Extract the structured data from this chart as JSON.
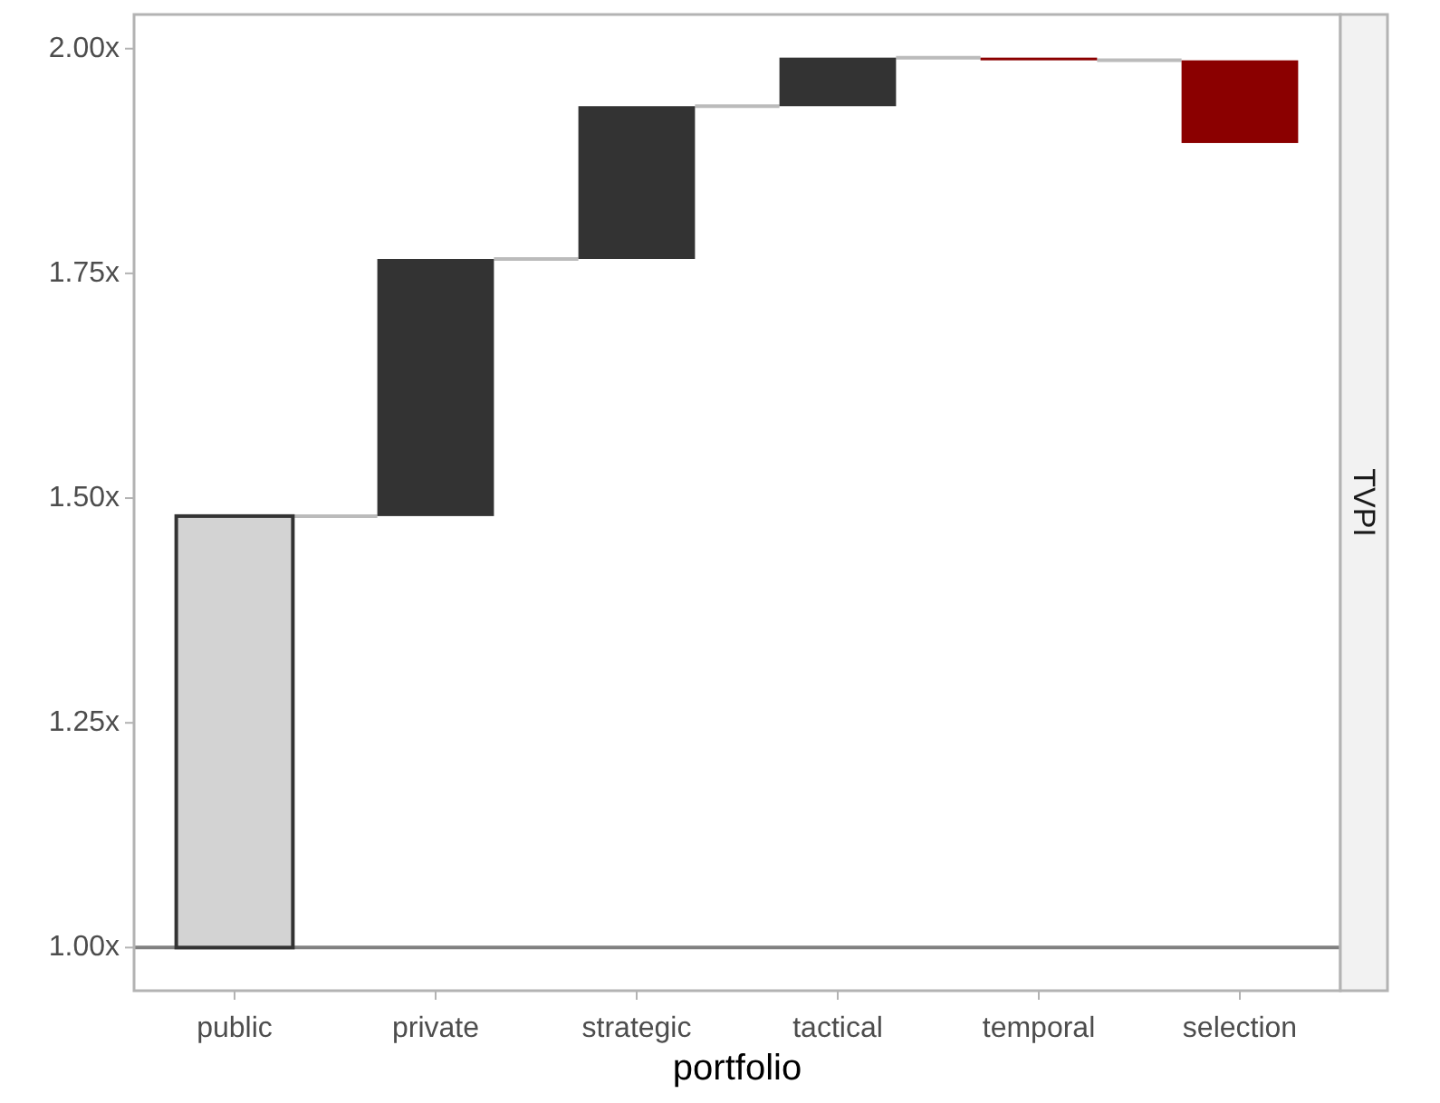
{
  "chart_data": {
    "type": "bar",
    "xlabel": "portfolio",
    "annotations": [
      "TVPI"
    ],
    "categories": [
      "public",
      "private",
      "strategic",
      "tactical",
      "temporal",
      "selection"
    ],
    "base": [
      1,
      1.48,
      1.766,
      1.936,
      1.99,
      1.987
    ],
    "values": [
      0.48,
      0.286,
      0.17,
      0.054,
      -0.003,
      -0.092
    ],
    "colors": [
      "#d3d3d3",
      "#333333",
      "#333333",
      "#333333",
      "#8b0000",
      "#8b0000"
    ],
    "ylim": [
      0.952,
      2.038
    ],
    "yticks": [
      {
        "value": 1,
        "label": "1.00x"
      },
      {
        "value": 1.25,
        "label": "1.25x"
      },
      {
        "value": 1.5,
        "label": "1.50x"
      },
      {
        "value": 1.75,
        "label": "1.75x"
      },
      {
        "value": 2,
        "label": "2.00x"
      }
    ],
    "ref_lines": [
      {
        "axis": "y",
        "value": 1,
        "color": "#808080"
      }
    ],
    "grid": false
  }
}
